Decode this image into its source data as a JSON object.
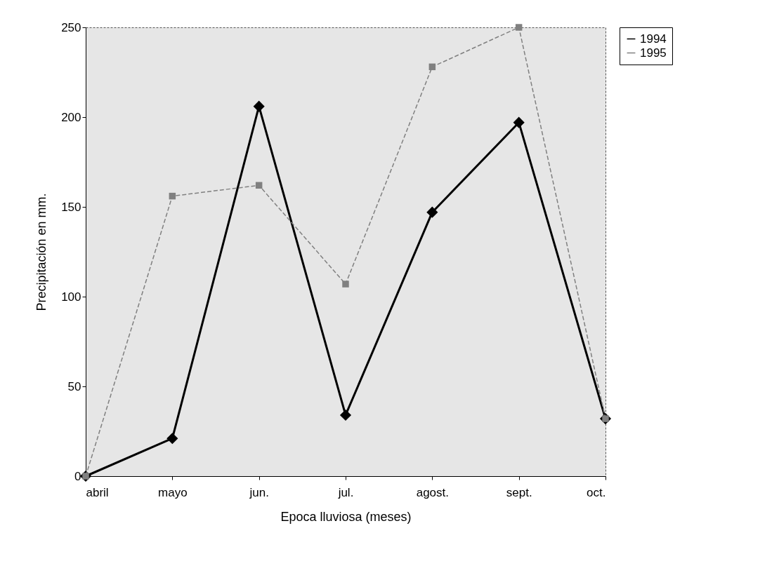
{
  "chart_data": {
    "type": "line",
    "xlabel": "Epoca lluviosa (meses)",
    "ylabel": "Precipitación en mm.",
    "categories": [
      "abril",
      "mayo",
      "jun.",
      "jul.",
      "agost.",
      "sept.",
      "oct."
    ],
    "series": [
      {
        "name": "1994",
        "color": "#000000",
        "marker": "diamond",
        "line_style": "solid",
        "values": [
          0,
          21,
          206,
          34,
          147,
          197,
          32
        ]
      },
      {
        "name": "1995",
        "color": "#808080",
        "marker": "square",
        "line_style": "dashed",
        "values": [
          0,
          156,
          162,
          107,
          228,
          250,
          32
        ]
      }
    ],
    "ylim": [
      0,
      250
    ],
    "yticks": [
      0,
      50,
      100,
      150,
      200,
      250
    ],
    "grid": false,
    "legend": "right"
  }
}
